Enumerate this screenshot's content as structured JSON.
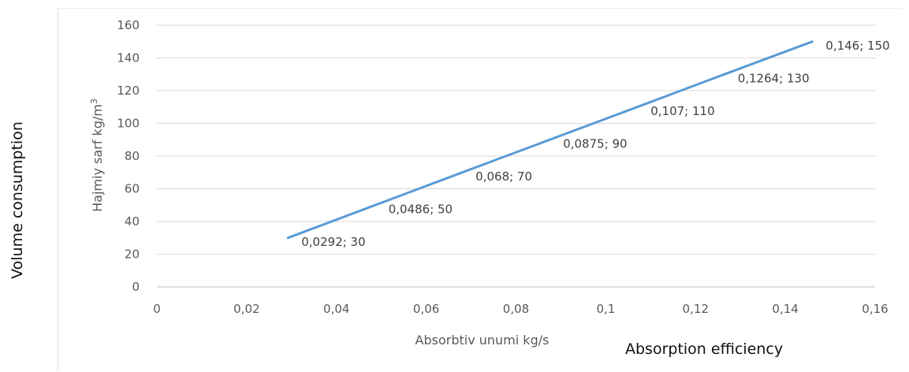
{
  "outer_ylabel": "Volume consumption",
  "secondary_xlabel": "Absorption efficiency",
  "chart_data": {
    "type": "line",
    "title": "",
    "xlabel": "Absorbtiv unumi kg/s",
    "ylabel_main": "Hajmiy sarf kg/m",
    "ylabel_sup": "3",
    "xlim": [
      0,
      0.16
    ],
    "ylim": [
      0,
      160
    ],
    "x_ticks": [
      0,
      0.02,
      0.04,
      0.06,
      0.08,
      0.1,
      0.12,
      0.14,
      0.16
    ],
    "x_tick_labels": [
      "0",
      "0,02",
      "0,04",
      "0,06",
      "0,08",
      "0,1",
      "0,12",
      "0,14",
      "0,16"
    ],
    "y_ticks": [
      0,
      20,
      40,
      60,
      80,
      100,
      120,
      140,
      160
    ],
    "y_tick_labels": [
      "0",
      "20",
      "40",
      "60",
      "80",
      "100",
      "120",
      "140",
      "160"
    ],
    "grid": "horizontal",
    "legend": "none",
    "series": [
      {
        "color": "#5b9bd5",
        "x": [
          0.0292,
          0.0486,
          0.068,
          0.0875,
          0.107,
          0.1264,
          0.146
        ],
        "y": [
          30,
          50,
          70,
          90,
          110,
          130,
          150
        ],
        "data_labels": [
          "0,0292; 30",
          "0,0486; 50",
          "0,068; 70",
          "0,0875; 90",
          "0,107; 110",
          "0,1264; 130",
          "0,146; 150"
        ]
      }
    ]
  }
}
